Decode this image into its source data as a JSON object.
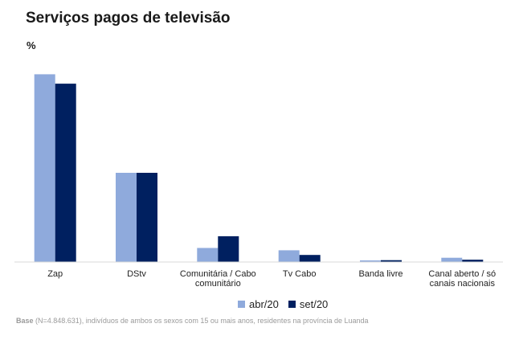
{
  "header": {
    "title": "Serviços pagos de televisão",
    "unit": "%"
  },
  "colors": {
    "series_1": "#8faadc",
    "series_2": "#002060",
    "axis": "#d9d9d9"
  },
  "footnote": {
    "label": "Base",
    "text": " (N=4.848.631), indivíduos de ambos os sexos com 15 ou mais anos, residentes na província de Luanda"
  },
  "chart_data": {
    "type": "bar",
    "title": "Serviços pagos de televisão",
    "ylabel": "%",
    "xlabel": "",
    "ylim": [
      0,
      100
    ],
    "grid": false,
    "legend_position": "bottom",
    "categories": [
      [
        "Zap"
      ],
      [
        "DStv"
      ],
      [
        "Comunitária / Cabo",
        "comunitário"
      ],
      [
        "Tv Cabo"
      ],
      [
        "Banda livre"
      ],
      [
        "Canal aberto / só",
        "canais nacionais"
      ]
    ],
    "series": [
      {
        "name": "abr/20",
        "values": [
          80,
          38,
          6,
          5,
          0.7,
          1.8
        ]
      },
      {
        "name": "set/20",
        "values": [
          76,
          38,
          11,
          3,
          0.8,
          1
        ]
      }
    ]
  }
}
